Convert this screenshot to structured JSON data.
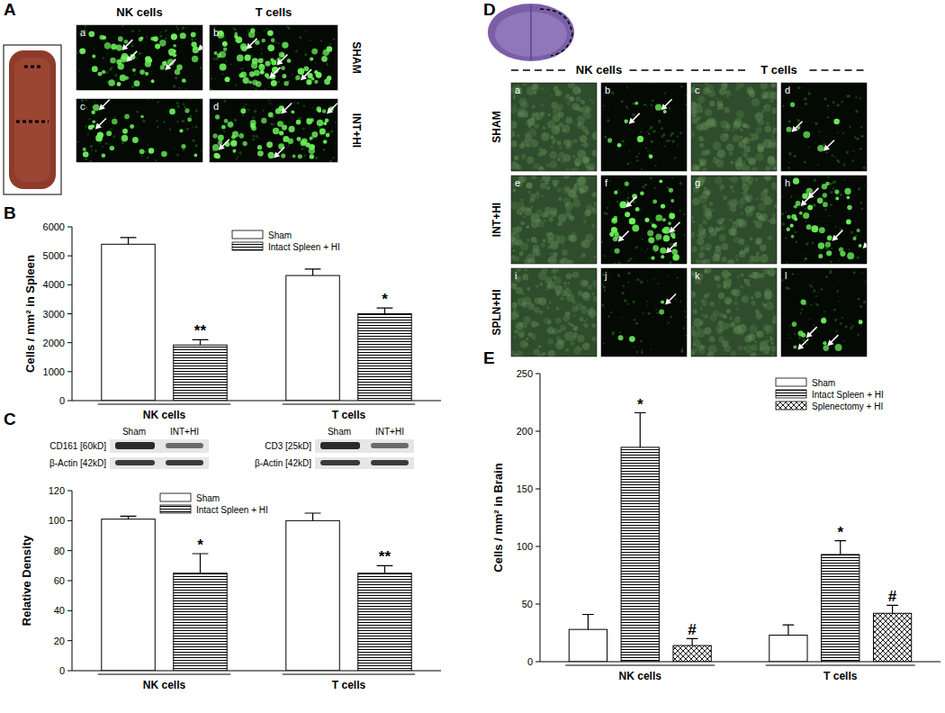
{
  "figure": {
    "panel_labels": [
      "A",
      "B",
      "C",
      "D",
      "E"
    ],
    "panel_a": {
      "columns": [
        "NK cells",
        "T cells"
      ],
      "rows": [
        "SHAM",
        "INT+HI"
      ],
      "subpanels": [
        [
          "a",
          "b"
        ],
        [
          "c",
          "d"
        ]
      ]
    },
    "panel_c_blots": {
      "lanes": [
        "Sham",
        "INT+HI"
      ],
      "blots": [
        {
          "protein": "CD161 [60kD]",
          "control": "β-Actin [42kD]"
        },
        {
          "protein": "CD3 [25kD]",
          "control": "β-Actin [42kD]"
        }
      ]
    },
    "panel_d": {
      "columns": [
        "NK cells",
        "T cells"
      ],
      "rows": [
        "SHAM",
        "INT+HI",
        "SPLN+HI"
      ],
      "subpanels": [
        [
          "a",
          "b",
          "c",
          "d"
        ],
        [
          "e",
          "f",
          "g",
          "h"
        ],
        [
          "i",
          "j",
          "k",
          "l"
        ]
      ]
    }
  },
  "chart_data": [
    {
      "type": "bar",
      "ylabel": "Cells / mm² in Spleen",
      "categories": [
        "NK cells",
        "T cells"
      ],
      "series": [
        {
          "name": "Sham",
          "color": "#ffffff",
          "values": [
            5400,
            4320
          ],
          "errors": [
            230,
            220
          ]
        },
        {
          "name": "Intact Spleen + HI",
          "color": "#ffffff",
          "values": [
            1920,
            3000
          ],
          "errors": [
            180,
            200
          ],
          "marks": [
            "**",
            "*"
          ]
        }
      ],
      "ylim": [
        0,
        6000
      ],
      "yticks": [
        0,
        1000,
        2000,
        3000,
        4000,
        5000,
        6000
      ],
      "legend": "upper right",
      "grid": false
    },
    {
      "type": "bar",
      "ylabel": "Relative Density",
      "categories": [
        "NK cells",
        "T cells"
      ],
      "series": [
        {
          "name": "Sham",
          "color": "#ffffff",
          "values": [
            101,
            100
          ],
          "errors": [
            2,
            5
          ]
        },
        {
          "name": "Intact Spleen + HI",
          "color": "#ffffff",
          "values": [
            65,
            65
          ],
          "errors": [
            13,
            5
          ],
          "marks": [
            "*",
            "**"
          ]
        }
      ],
      "ylim": [
        0,
        120
      ],
      "yticks": [
        0,
        20,
        40,
        60,
        80,
        100,
        120
      ],
      "legend": "upper center",
      "grid": false
    },
    {
      "type": "bar",
      "ylabel": "Cells / mm² in Brain",
      "categories": [
        "NK cells",
        "T cells"
      ],
      "series": [
        {
          "name": "Sham",
          "color": "#ffffff",
          "values": [
            28,
            23
          ],
          "errors": [
            13,
            9
          ]
        },
        {
          "name": "Intact Spleen + HI",
          "color": "#ffffff",
          "values": [
            186,
            93
          ],
          "errors": [
            30,
            12
          ],
          "marks": [
            "*",
            "*"
          ]
        },
        {
          "name": "Splenectomy + HI",
          "color": "#ffffff",
          "values": [
            14,
            42
          ],
          "errors": [
            6,
            7
          ],
          "marks": [
            "#",
            "#"
          ]
        }
      ],
      "ylim": [
        0,
        250
      ],
      "yticks": [
        0,
        50,
        100,
        150,
        200,
        250
      ],
      "legend": "upper right",
      "grid": false
    }
  ]
}
